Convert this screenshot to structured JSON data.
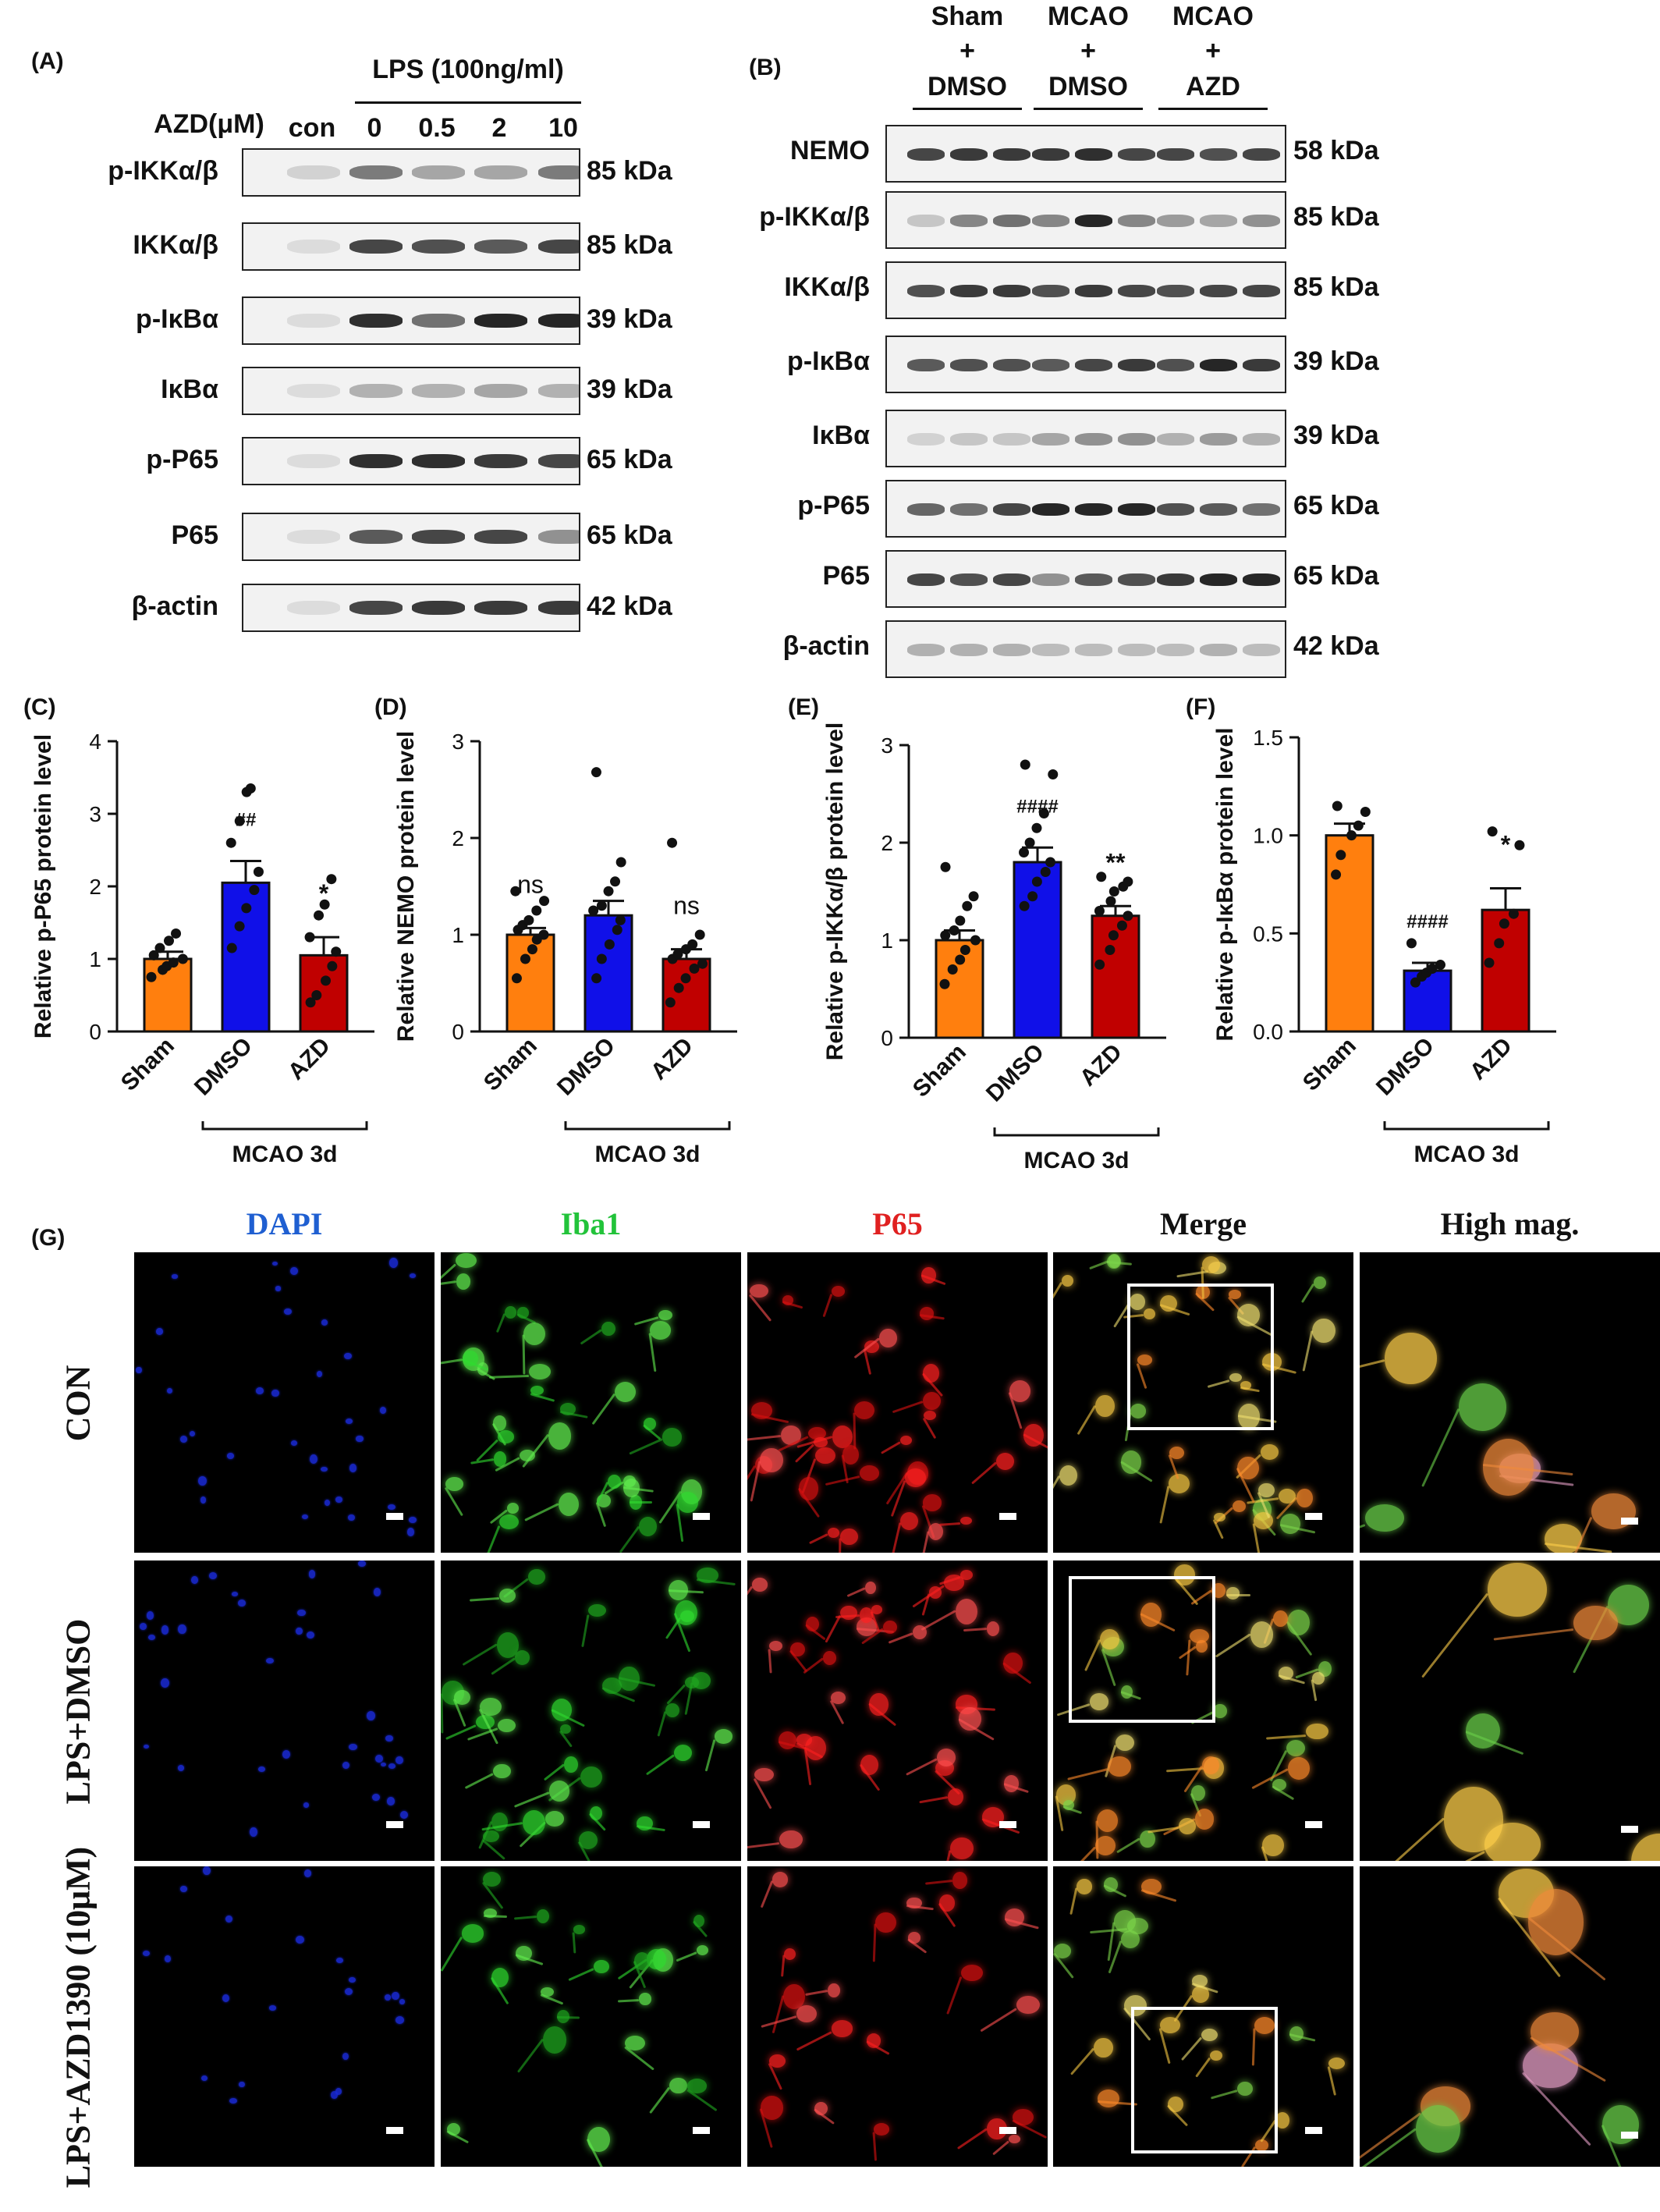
{
  "panelA": {
    "label": "(A)",
    "lps_header": "LPS (100ng/ml)",
    "azd_header": "AZD(μM)",
    "lanes": [
      "con",
      "0",
      "0.5",
      "2",
      "10"
    ],
    "rows": [
      {
        "name": "p-IKKα/β",
        "kda": "85 kDa"
      },
      {
        "name": "IKKα/β",
        "kda": "85 kDa"
      },
      {
        "name": "p-IκBα",
        "kda": "39 kDa"
      },
      {
        "name": "IκBα",
        "kda": "39 kDa"
      },
      {
        "name": "p-P65",
        "kda": "65 kDa"
      },
      {
        "name": "P65",
        "kda": "65 kDa"
      },
      {
        "name": "β-actin",
        "kda": "42 kDa"
      }
    ]
  },
  "panelB": {
    "label": "(B)",
    "groups": [
      {
        "top": "Sham",
        "plus": "+",
        "bottom": "DMSO"
      },
      {
        "top": "MCAO",
        "plus": "+",
        "bottom": "DMSO"
      },
      {
        "top": "MCAO",
        "plus": "+",
        "bottom": "AZD"
      }
    ],
    "rows": [
      {
        "name": "NEMO",
        "kda": "58 kDa"
      },
      {
        "name": "p-IKKα/β",
        "kda": "85 kDa"
      },
      {
        "name": "IKKα/β",
        "kda": "85 kDa"
      },
      {
        "name": "p-IκBα",
        "kda": "39 kDa"
      },
      {
        "name": "IκBα",
        "kda": "39 kDa"
      },
      {
        "name": "p-P65",
        "kda": "65 kDa"
      },
      {
        "name": "P65",
        "kda": "65 kDa"
      },
      {
        "name": "β-actin",
        "kda": "42 kDa"
      }
    ]
  },
  "colors": {
    "sham": "#ff7f0e",
    "dmso": "#1010e8",
    "azd": "#c00000"
  },
  "chart_data": [
    {
      "panel": "(C)",
      "type": "bar",
      "ylabel": "Relative p-P65 protein level",
      "categories": [
        "Sham",
        "DMSO",
        "AZD"
      ],
      "values": [
        1.0,
        2.05,
        1.05
      ],
      "sem": [
        0.1,
        0.3,
        0.25
      ],
      "ylim": [
        0,
        4
      ],
      "yticks": [
        "0",
        "1",
        "2",
        "3",
        "4"
      ],
      "annotations": [
        "",
        "##",
        "*"
      ],
      "group_label": "MCAO 3d",
      "points": [
        [
          0.75,
          0.85,
          0.9,
          0.95,
          1.0,
          1.05,
          1.15,
          1.25,
          1.35
        ],
        [
          1.15,
          1.45,
          1.7,
          1.95,
          2.2,
          2.6,
          2.9,
          3.3,
          3.35
        ],
        [
          0.4,
          0.5,
          0.7,
          0.9,
          1.1,
          1.3,
          1.6,
          1.75,
          2.1
        ]
      ]
    },
    {
      "panel": "(D)",
      "type": "bar",
      "ylabel": "Relative NEMO protein level",
      "categories": [
        "Sham",
        "DMSO",
        "AZD"
      ],
      "values": [
        1.0,
        1.2,
        0.75
      ],
      "sem": [
        0.07,
        0.15,
        0.1
      ],
      "ylim": [
        0,
        3
      ],
      "yticks": [
        "0",
        "1",
        "2",
        "3"
      ],
      "annotations": [
        "ns",
        "",
        "ns"
      ],
      "group_label": "MCAO 3d",
      "points": [
        [
          0.55,
          0.75,
          0.85,
          0.95,
          1.0,
          1.05,
          1.1,
          1.15,
          1.25,
          1.35,
          1.45
        ],
        [
          0.55,
          0.75,
          0.9,
          1.05,
          1.15,
          1.25,
          1.3,
          1.45,
          1.55,
          1.75,
          2.68
        ],
        [
          0.3,
          0.45,
          0.55,
          0.65,
          0.7,
          0.75,
          0.8,
          0.85,
          0.9,
          1.0,
          1.95
        ]
      ]
    },
    {
      "panel": "(E)",
      "type": "bar",
      "ylabel": "Relative p-IKKα/β protein level",
      "categories": [
        "Sham",
        "DMSO",
        "AZD"
      ],
      "values": [
        1.0,
        1.8,
        1.25
      ],
      "sem": [
        0.1,
        0.15,
        0.1
      ],
      "ylim": [
        0,
        3
      ],
      "yticks": [
        "0",
        "1",
        "2",
        "3"
      ],
      "annotations": [
        "",
        "####",
        "**"
      ],
      "group_label": "MCAO 3d",
      "points": [
        [
          0.55,
          0.7,
          0.8,
          0.9,
          1.0,
          1.05,
          1.1,
          1.2,
          1.35,
          1.45,
          1.75
        ],
        [
          1.35,
          1.45,
          1.6,
          1.7,
          1.8,
          1.9,
          2.0,
          2.15,
          2.3,
          2.7,
          2.8
        ],
        [
          0.75,
          0.9,
          1.05,
          1.15,
          1.25,
          1.3,
          1.4,
          1.5,
          1.55,
          1.6,
          1.65
        ]
      ]
    },
    {
      "panel": "(F)",
      "type": "bar",
      "ylabel": "Relative p-IκBα protein level",
      "categories": [
        "Sham",
        "DMSO",
        "AZD"
      ],
      "values": [
        1.0,
        0.31,
        0.62
      ],
      "sem": [
        0.06,
        0.04,
        0.11
      ],
      "ylim": [
        0,
        1.5
      ],
      "yticks": [
        "0.0",
        "0.5",
        "1.0",
        "1.5"
      ],
      "annotations": [
        "",
        "####",
        "*"
      ],
      "group_label": "MCAO 3d",
      "points": [
        [
          0.8,
          0.9,
          1.0,
          1.05,
          1.12,
          1.15
        ],
        [
          0.25,
          0.28,
          0.3,
          0.32,
          0.34,
          0.45
        ],
        [
          0.35,
          0.45,
          0.55,
          0.6,
          0.95,
          1.02
        ]
      ]
    }
  ],
  "panelG": {
    "label": "(G)",
    "columns": [
      "DAPI",
      "Iba1",
      "P65",
      "Merge",
      "High mag."
    ],
    "rows": [
      "CON",
      "LPS+DMSO",
      "LPS+AZD1390 (10μM)"
    ],
    "column_colors": [
      "#1f5fd1",
      "#22c33a",
      "#e02020",
      "#111111",
      "#111111"
    ]
  }
}
